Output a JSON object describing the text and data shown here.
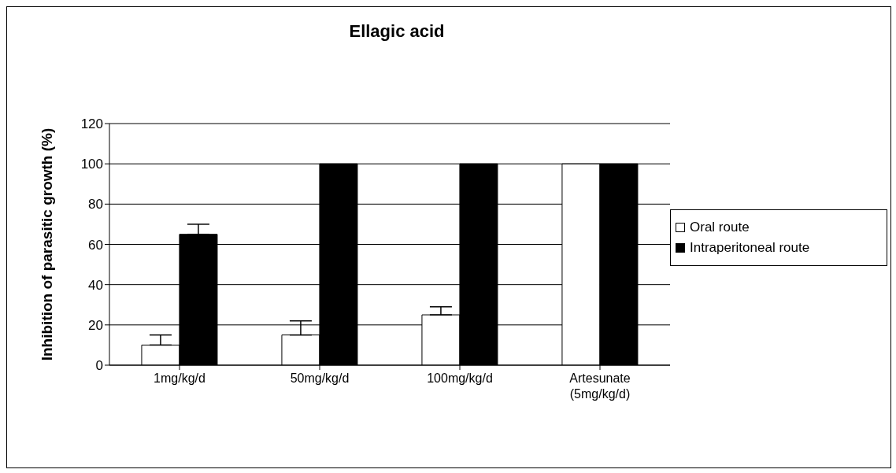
{
  "chart_data": {
    "type": "bar",
    "title": "Ellagic acid",
    "ylabel": "Inhibition of parasitic growth (%)",
    "categories": [
      "1mg/kg/d",
      "50mg/kg/d",
      "100mg/kg/d",
      "Artesunate\n(5mg/kg/d)"
    ],
    "series": [
      {
        "name": "Oral route",
        "color": "#ffffff",
        "values": [
          10,
          15,
          25,
          100
        ],
        "errors": [
          [
            10,
            15
          ],
          [
            15,
            22
          ],
          [
            25,
            29
          ],
          null
        ]
      },
      {
        "name": "Intraperitoneal route",
        "color": "#000000",
        "values": [
          65,
          100,
          100,
          100
        ],
        "errors": [
          [
            65,
            70
          ],
          null,
          null,
          null
        ]
      }
    ],
    "ylim": [
      0,
      120
    ],
    "yticks": [
      0,
      20,
      40,
      60,
      80,
      100,
      120
    ],
    "grid": "y",
    "legend": "right"
  }
}
